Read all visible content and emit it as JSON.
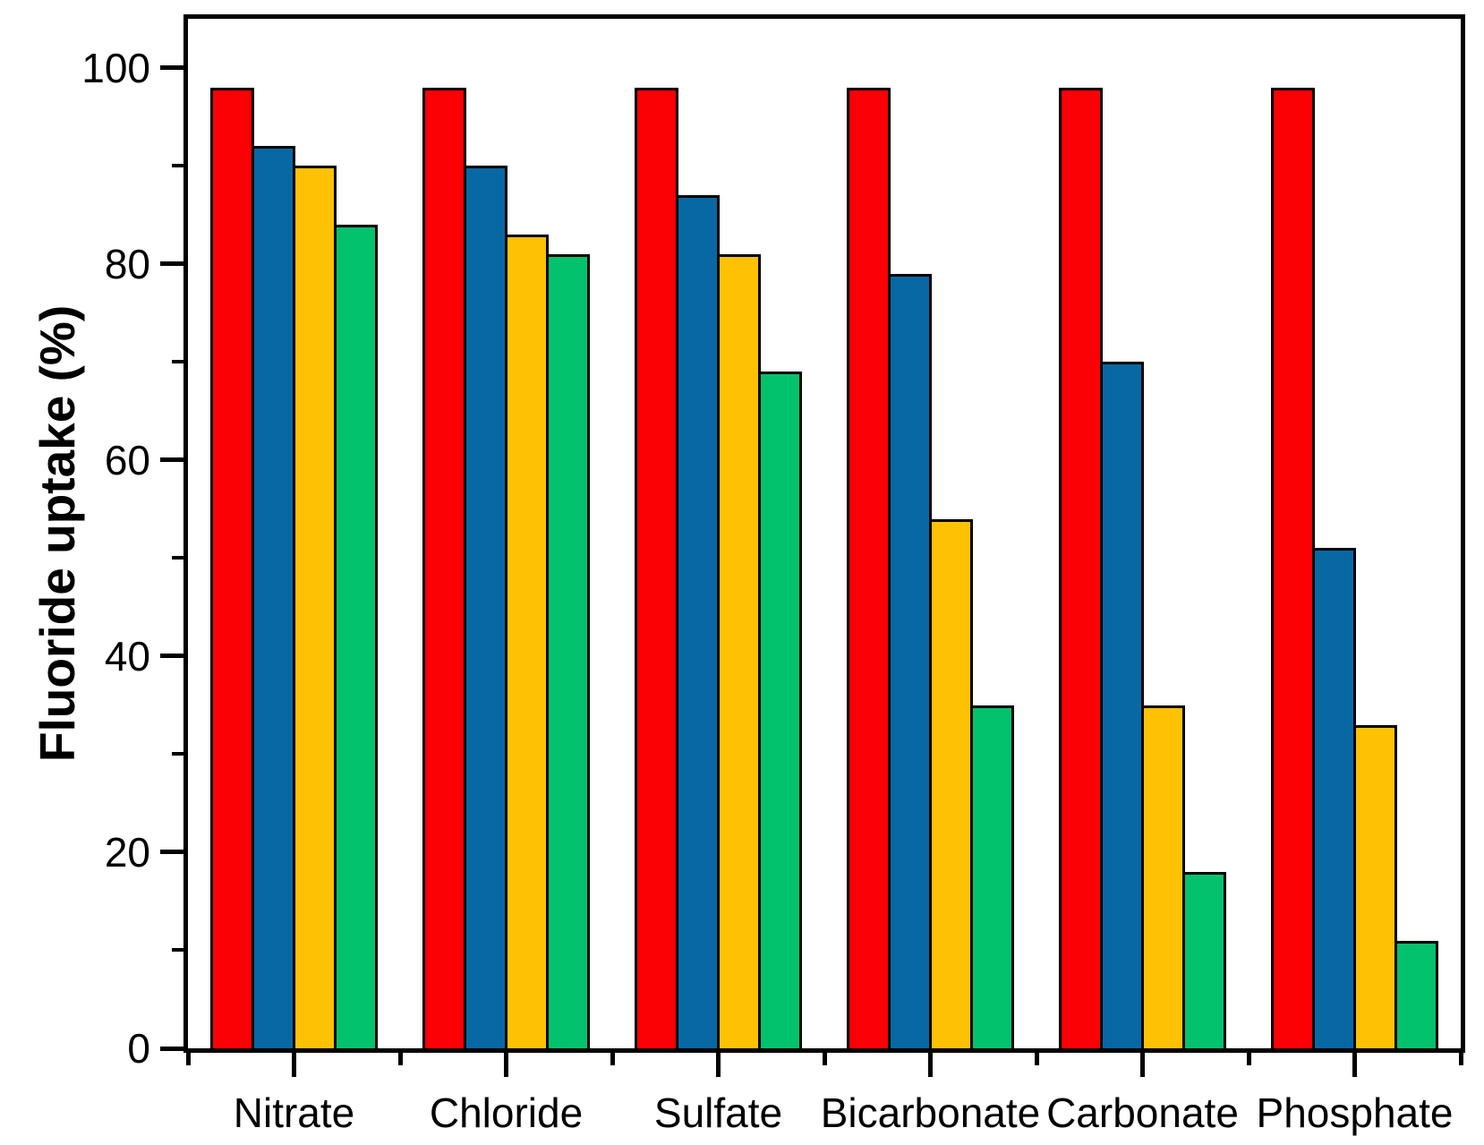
{
  "figure": {
    "background": "#ffffff",
    "frame_color": "#000000"
  },
  "chart_data": {
    "type": "bar",
    "title": "",
    "xlabel": "",
    "ylabel": "Fluoride uptake (%)",
    "categories": [
      "Nitrate",
      "Chloride",
      "Sulfate",
      "Bicarbonate",
      "Carbonate",
      "Phosphate"
    ],
    "series": [
      {
        "name": "red",
        "color": "#fb0005",
        "values": [
          98,
          98,
          98,
          98,
          98,
          98
        ]
      },
      {
        "name": "blue",
        "color": "#0868a4",
        "values": [
          92,
          90,
          87,
          79,
          70,
          51
        ]
      },
      {
        "name": "yellow",
        "color": "#ffc103",
        "values": [
          90,
          83,
          81,
          54,
          35,
          33
        ]
      },
      {
        "name": "green",
        "color": "#03c26d",
        "values": [
          84,
          81,
          69,
          35,
          18,
          11
        ]
      }
    ],
    "ylim": [
      0,
      105
    ],
    "yticks_major": [
      0,
      20,
      40,
      60,
      80,
      100
    ],
    "yticks_minor": [
      10,
      30,
      50,
      70,
      90
    ],
    "ytick_labels": [
      "0",
      "20",
      "40",
      "60",
      "80",
      "100"
    ],
    "grid": false,
    "legend_position": "none",
    "bar_outline_color": "#000000"
  }
}
